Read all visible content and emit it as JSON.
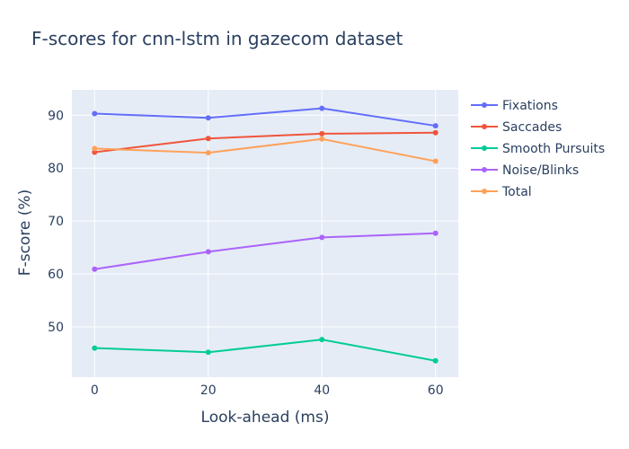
{
  "chart_data": {
    "type": "line",
    "title": "F-scores for cnn-lstm in gazecom dataset",
    "xlabel": "Look-ahead (ms)",
    "ylabel": "F-score (%)",
    "x": [
      0,
      20,
      40,
      60
    ],
    "xlim": [
      -4,
      64
    ],
    "ylim": [
      40.5,
      94.8
    ],
    "xticks": [
      0,
      20,
      40,
      60
    ],
    "yticks": [
      50,
      60,
      70,
      80,
      90
    ],
    "grid": true,
    "legend_position": "top-right",
    "series": [
      {
        "name": "Fixations",
        "color": "#636efa",
        "values": [
          90.3,
          89.5,
          91.3,
          88.0
        ]
      },
      {
        "name": "Saccades",
        "color": "#ef553b",
        "values": [
          83.0,
          85.6,
          86.5,
          86.7
        ]
      },
      {
        "name": "Smooth Pursuits",
        "color": "#00cc96",
        "values": [
          46.0,
          45.2,
          47.6,
          43.6
        ]
      },
      {
        "name": "Noise/Blinks",
        "color": "#ab63fa",
        "values": [
          60.9,
          64.2,
          66.9,
          67.7
        ]
      },
      {
        "name": "Total",
        "color": "#ffa15a",
        "values": [
          83.7,
          82.9,
          85.5,
          81.3
        ]
      }
    ]
  }
}
